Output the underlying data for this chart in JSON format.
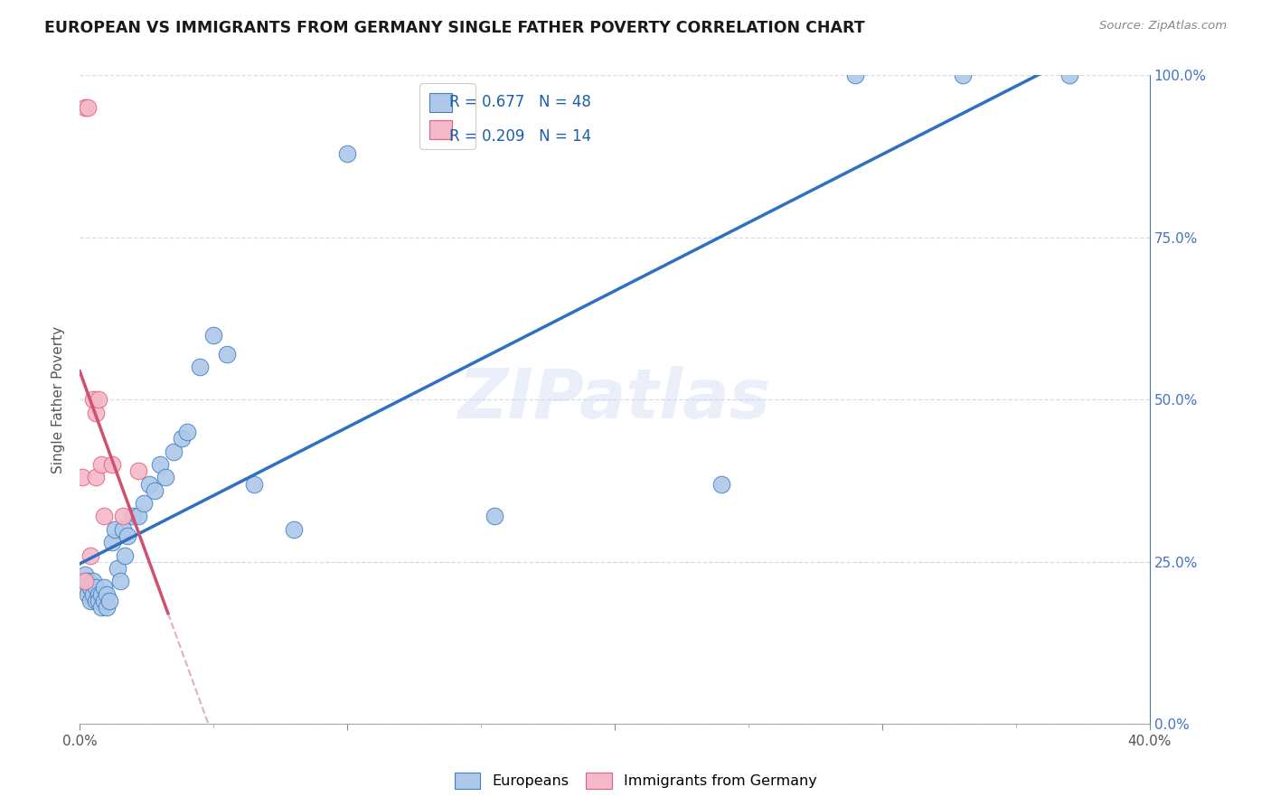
{
  "title": "EUROPEAN VS IMMIGRANTS FROM GERMANY SINGLE FATHER POVERTY CORRELATION CHART",
  "source": "Source: ZipAtlas.com",
  "ylabel": "Single Father Poverty",
  "right_ytick_labels": [
    "0.0%",
    "25.0%",
    "50.0%",
    "75.0%",
    "100.0%"
  ],
  "right_ytick_vals": [
    0.0,
    0.25,
    0.5,
    0.75,
    1.0
  ],
  "blue_face": "#adc8e8",
  "blue_edge": "#4080c0",
  "pink_face": "#f5b8c8",
  "pink_edge": "#e06080",
  "line_blue_color": "#3070c0",
  "line_pink_color": "#d05070",
  "line_dash_pink_color": "#e0a0b0",
  "watermark": "ZIPatlas",
  "xlim": [
    0,
    0.4
  ],
  "ylim": [
    0,
    1.0
  ],
  "legend_blue_r": "R = 0.677",
  "legend_blue_n": "N = 48",
  "legend_pink_r": "R = 0.209",
  "legend_pink_n": "N = 14",
  "europeans_x": [
    0.001,
    0.002,
    0.002,
    0.003,
    0.003,
    0.004,
    0.004,
    0.005,
    0.005,
    0.006,
    0.006,
    0.007,
    0.007,
    0.008,
    0.008,
    0.009,
    0.009,
    0.01,
    0.01,
    0.011,
    0.012,
    0.013,
    0.014,
    0.015,
    0.016,
    0.017,
    0.018,
    0.02,
    0.022,
    0.024,
    0.026,
    0.028,
    0.03,
    0.032,
    0.035,
    0.038,
    0.04,
    0.045,
    0.05,
    0.055,
    0.065,
    0.08,
    0.1,
    0.155,
    0.24,
    0.29,
    0.33,
    0.37
  ],
  "europeans_y": [
    0.22,
    0.21,
    0.23,
    0.2,
    0.22,
    0.19,
    0.21,
    0.2,
    0.22,
    0.19,
    0.21,
    0.2,
    0.19,
    0.2,
    0.18,
    0.21,
    0.19,
    0.2,
    0.18,
    0.19,
    0.28,
    0.3,
    0.24,
    0.22,
    0.3,
    0.26,
    0.29,
    0.32,
    0.32,
    0.34,
    0.37,
    0.36,
    0.4,
    0.38,
    0.42,
    0.44,
    0.45,
    0.55,
    0.6,
    0.57,
    0.37,
    0.3,
    0.88,
    0.32,
    0.37,
    1.0,
    1.0,
    1.0
  ],
  "immigrants_x": [
    0.001,
    0.002,
    0.002,
    0.003,
    0.004,
    0.005,
    0.006,
    0.006,
    0.007,
    0.008,
    0.009,
    0.012,
    0.016,
    0.022
  ],
  "immigrants_y": [
    0.38,
    0.22,
    0.95,
    0.95,
    0.26,
    0.5,
    0.48,
    0.38,
    0.5,
    0.4,
    0.32,
    0.4,
    0.32,
    0.39
  ]
}
